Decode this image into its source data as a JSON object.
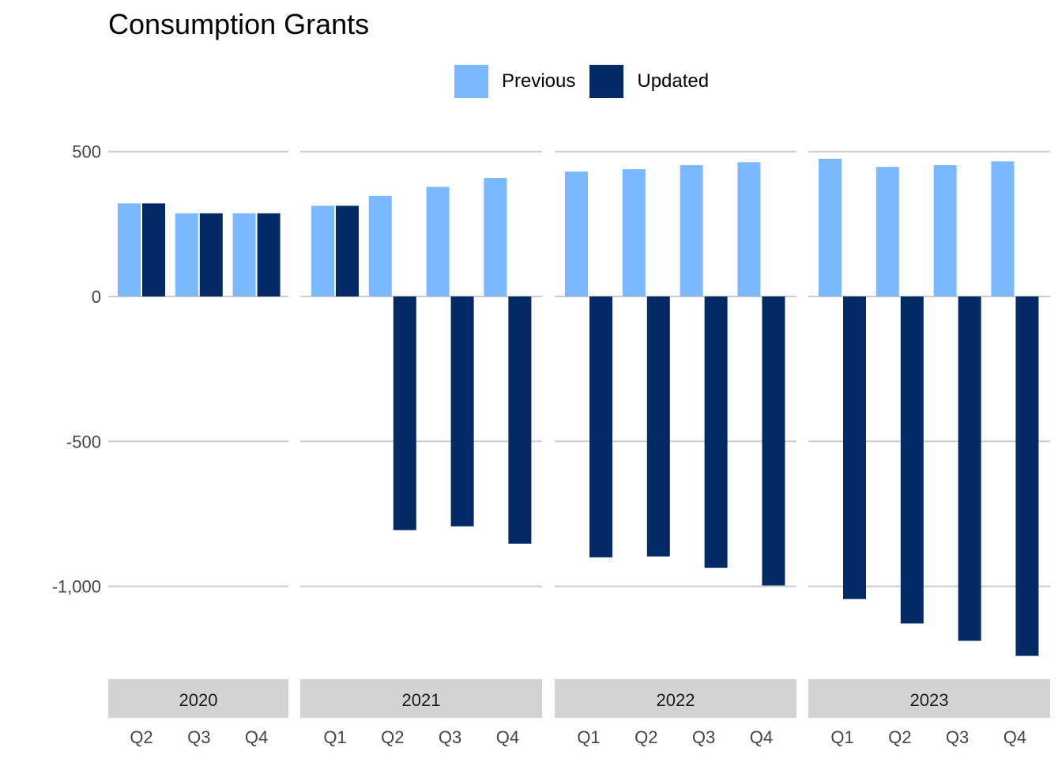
{
  "chart_data": {
    "type": "bar",
    "title": "Consumption Grants",
    "xlabel": "",
    "ylabel": "",
    "ylim": [
      -1240,
      500
    ],
    "yticks": [
      500,
      0,
      -500,
      -1000
    ],
    "ytick_labels": [
      "500",
      "0",
      "-500",
      "-1,000"
    ],
    "grid": true,
    "legend_position": "top",
    "colors": {
      "Previous": "#7ab8ff",
      "Updated": "#042a65"
    },
    "panels": [
      {
        "label": "2020",
        "categories": [
          "Q2",
          "Q3",
          "Q4"
        ],
        "series": [
          {
            "name": "Previous",
            "values": [
              321,
              287,
              287
            ]
          },
          {
            "name": "Updated",
            "values": [
              321,
              287,
              287
            ]
          }
        ]
      },
      {
        "label": "2021",
        "categories": [
          "Q1",
          "Q2",
          "Q3",
          "Q4"
        ],
        "series": [
          {
            "name": "Previous",
            "values": [
              313,
              347,
              378,
              409
            ]
          },
          {
            "name": "Updated",
            "values": [
              313,
              -806,
              -793,
              -853
            ]
          }
        ]
      },
      {
        "label": "2022",
        "categories": [
          "Q1",
          "Q2",
          "Q3",
          "Q4"
        ],
        "series": [
          {
            "name": "Previous",
            "values": [
              431,
              439,
              453,
              463
            ]
          },
          {
            "name": "Updated",
            "values": [
              -900,
              -897,
              -936,
              -997
            ]
          }
        ]
      },
      {
        "label": "2023",
        "categories": [
          "Q1",
          "Q2",
          "Q3",
          "Q4"
        ],
        "series": [
          {
            "name": "Previous",
            "values": [
              475,
              447,
              453,
              466
            ]
          },
          {
            "name": "Updated",
            "values": [
              -1044,
              -1128,
              -1188,
              -1240
            ]
          }
        ]
      }
    ]
  }
}
